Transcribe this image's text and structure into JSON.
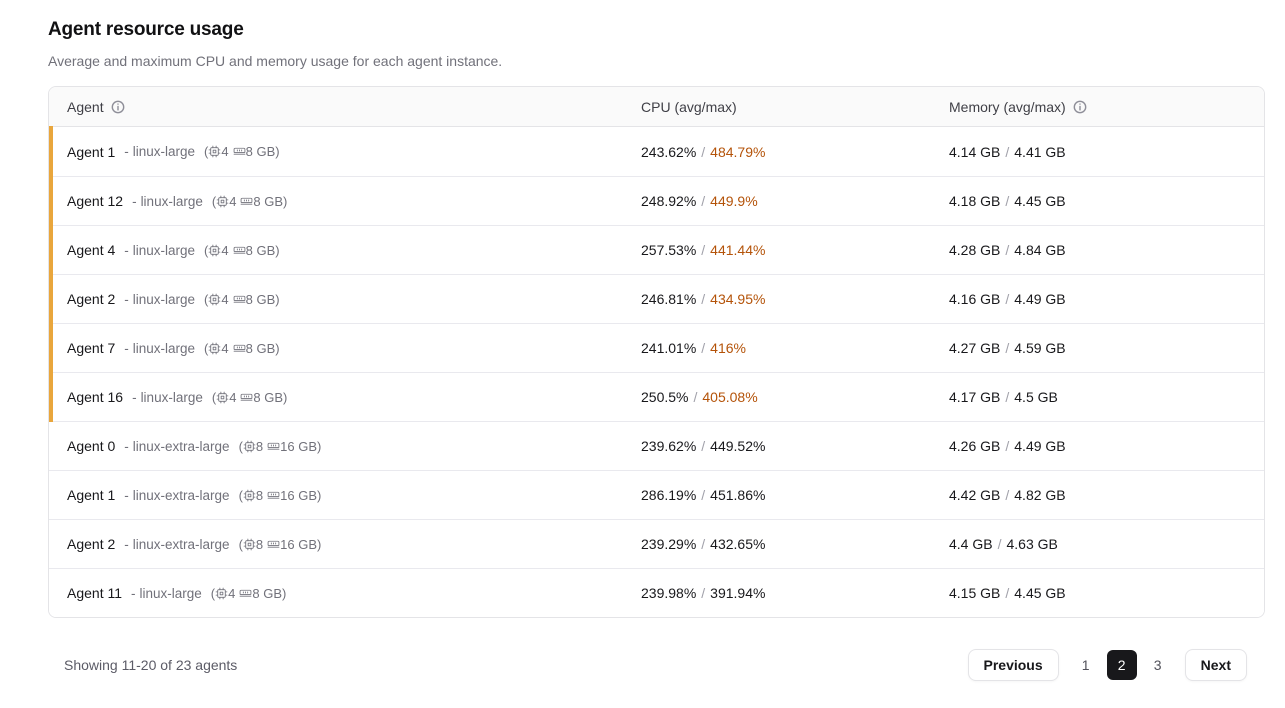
{
  "page": {
    "title": "Agent resource usage",
    "subtitle": "Average and maximum CPU and memory usage for each agent instance."
  },
  "table": {
    "columns": {
      "agent": "Agent",
      "cpu": "CPU (avg/max)",
      "memory": "Memory (avg/max)"
    },
    "instance_separator": "-",
    "spec_open": "(",
    "spec_close": ")",
    "value_separator": "/",
    "rows": [
      {
        "name": "Agent 1",
        "instance_type": "linux-large",
        "cpus": "4",
        "ram": "8 GB",
        "cpu_avg": "243.62%",
        "cpu_max": "484.79%",
        "mem_avg": "4.14 GB",
        "mem_max": "4.41 GB",
        "warn": true
      },
      {
        "name": "Agent 12",
        "instance_type": "linux-large",
        "cpus": "4",
        "ram": "8 GB",
        "cpu_avg": "248.92%",
        "cpu_max": "449.9%",
        "mem_avg": "4.18 GB",
        "mem_max": "4.45 GB",
        "warn": true
      },
      {
        "name": "Agent 4",
        "instance_type": "linux-large",
        "cpus": "4",
        "ram": "8 GB",
        "cpu_avg": "257.53%",
        "cpu_max": "441.44%",
        "mem_avg": "4.28 GB",
        "mem_max": "4.84 GB",
        "warn": true
      },
      {
        "name": "Agent 2",
        "instance_type": "linux-large",
        "cpus": "4",
        "ram": "8 GB",
        "cpu_avg": "246.81%",
        "cpu_max": "434.95%",
        "mem_avg": "4.16 GB",
        "mem_max": "4.49 GB",
        "warn": true
      },
      {
        "name": "Agent 7",
        "instance_type": "linux-large",
        "cpus": "4",
        "ram": "8 GB",
        "cpu_avg": "241.01%",
        "cpu_max": "416%",
        "mem_avg": "4.27 GB",
        "mem_max": "4.59 GB",
        "warn": true
      },
      {
        "name": "Agent 16",
        "instance_type": "linux-large",
        "cpus": "4",
        "ram": "8 GB",
        "cpu_avg": "250.5%",
        "cpu_max": "405.08%",
        "mem_avg": "4.17 GB",
        "mem_max": "4.5 GB",
        "warn": true
      },
      {
        "name": "Agent 0",
        "instance_type": "linux-extra-large",
        "cpus": "8",
        "ram": "16 GB",
        "cpu_avg": "239.62%",
        "cpu_max": "449.52%",
        "mem_avg": "4.26 GB",
        "mem_max": "4.49 GB",
        "warn": false
      },
      {
        "name": "Agent 1",
        "instance_type": "linux-extra-large",
        "cpus": "8",
        "ram": "16 GB",
        "cpu_avg": "286.19%",
        "cpu_max": "451.86%",
        "mem_avg": "4.42 GB",
        "mem_max": "4.82 GB",
        "warn": false
      },
      {
        "name": "Agent 2",
        "instance_type": "linux-extra-large",
        "cpus": "8",
        "ram": "16 GB",
        "cpu_avg": "239.29%",
        "cpu_max": "432.65%",
        "mem_avg": "4.4 GB",
        "mem_max": "4.63 GB",
        "warn": false
      },
      {
        "name": "Agent 11",
        "instance_type": "linux-large",
        "cpus": "4",
        "ram": "8 GB",
        "cpu_avg": "239.98%",
        "cpu_max": "391.94%",
        "mem_avg": "4.15 GB",
        "mem_max": "4.45 GB",
        "warn": false
      }
    ]
  },
  "footer": {
    "showing": "Showing 11-20 of 23 agents",
    "previous_label": "Previous",
    "next_label": "Next",
    "pages": [
      "1",
      "2",
      "3"
    ],
    "current_page": "2"
  },
  "colors": {
    "accent_bar": "#E9A63C",
    "cpu_max_warn": "#B45309",
    "active_page_bg": "#18181B"
  }
}
